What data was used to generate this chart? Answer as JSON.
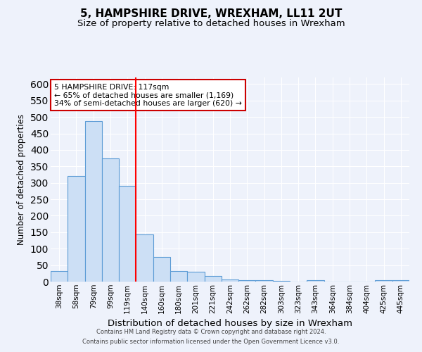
{
  "title": "5, HAMPSHIRE DRIVE, WREXHAM, LL11 2UT",
  "subtitle": "Size of property relative to detached houses in Wrexham",
  "xlabel": "Distribution of detached houses by size in Wrexham",
  "ylabel": "Number of detached properties",
  "categories": [
    "38sqm",
    "58sqm",
    "79sqm",
    "99sqm",
    "119sqm",
    "140sqm",
    "160sqm",
    "180sqm",
    "201sqm",
    "221sqm",
    "242sqm",
    "262sqm",
    "282sqm",
    "303sqm",
    "323sqm",
    "343sqm",
    "364sqm",
    "384sqm",
    "404sqm",
    "425sqm",
    "445sqm"
  ],
  "values": [
    33,
    320,
    487,
    375,
    290,
    143,
    75,
    33,
    30,
    17,
    7,
    5,
    5,
    2,
    1,
    4,
    0,
    0,
    0,
    5,
    5
  ],
  "bar_color": "#ccdff5",
  "bar_edge_color": "#5b9bd5",
  "background_color": "#eef2fb",
  "grid_color": "#ffffff",
  "red_line_x": 4.5,
  "annotation_text": "5 HAMPSHIRE DRIVE: 117sqm\n← 65% of detached houses are smaller (1,169)\n34% of semi-detached houses are larger (620) →",
  "annotation_box_color": "#ffffff",
  "annotation_box_edge_color": "#cc0000",
  "footer_line1": "Contains HM Land Registry data © Crown copyright and database right 2024.",
  "footer_line2": "Contains public sector information licensed under the Open Government Licence v3.0.",
  "ylim": [
    0,
    620
  ],
  "yticks": [
    0,
    50,
    100,
    150,
    200,
    250,
    300,
    350,
    400,
    450,
    500,
    550,
    600
  ],
  "title_fontsize": 11,
  "subtitle_fontsize": 9.5,
  "tick_fontsize": 7.5,
  "ylabel_fontsize": 8.5,
  "xlabel_fontsize": 9.5
}
